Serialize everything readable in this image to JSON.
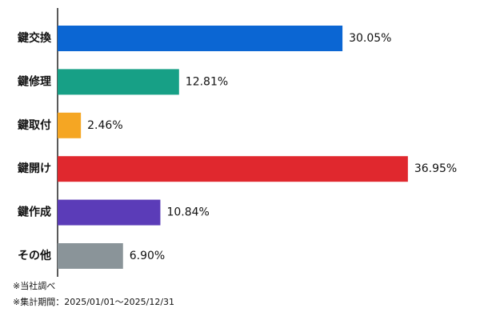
{
  "chart_data": {
    "type": "bar",
    "orientation": "horizontal",
    "categories": [
      "鍵交換",
      "鍵修理",
      "鍵取付",
      "鍵開け",
      "鍵作成",
      "その他"
    ],
    "values": [
      30.05,
      12.81,
      2.46,
      36.95,
      10.84,
      6.9
    ],
    "value_labels": [
      "30.05%",
      "12.81%",
      "2.46%",
      "36.95%",
      "10.84%",
      "6.90%"
    ],
    "colors": [
      "#0b66d3",
      "#17a086",
      "#f5a623",
      "#e0282e",
      "#5b3cb8",
      "#8a9499"
    ],
    "notes": [
      "※当社調べ",
      "※集計期間：2025/01/01～2025/12/31"
    ]
  }
}
